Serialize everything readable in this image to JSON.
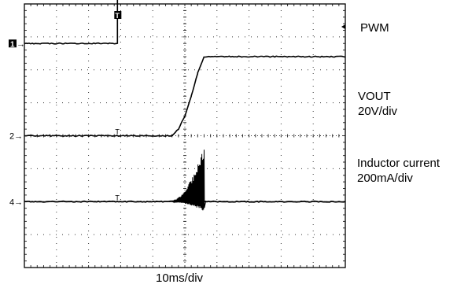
{
  "chart_data": {
    "type": "line",
    "title": "",
    "xlabel": "10ms/div",
    "ylabel": "",
    "grid": true,
    "time_per_div_ms": 10,
    "x_divisions": 10,
    "y_divisions": 8,
    "marker_labels": [
      "1→",
      "2→",
      "4→",
      "T"
    ],
    "annotations": [
      {
        "id": "pwm",
        "lines": [
          "PWM"
        ]
      },
      {
        "id": "vout",
        "lines": [
          "VOUT",
          "20V/div"
        ]
      },
      {
        "id": "ind",
        "lines": [
          "Inductor current",
          "200mA/div"
        ]
      }
    ],
    "series": [
      {
        "name": "PWM",
        "ground_div": 6.8,
        "trigger_ms": 29,
        "x_ms": [
          0,
          29,
          29,
          100
        ],
        "y_div": [
          0,
          0,
          6.6,
          6.6
        ]
      },
      {
        "name": "VOUT",
        "units_per_div": "20V/div",
        "ground_div": 4.0,
        "x_ms": [
          0,
          46,
          48,
          50,
          52,
          54,
          56,
          100
        ],
        "y_div": [
          0,
          0,
          0.2,
          0.6,
          1.2,
          1.9,
          2.4,
          2.4
        ]
      },
      {
        "name": "Inductor current",
        "units_per_div": "200mA/div",
        "ground_div": 2.0,
        "x_ms": [
          0,
          45,
          56,
          56.5,
          100
        ],
        "envelope_max_div": [
          0,
          0,
          1.7,
          0,
          0
        ],
        "envelope_min_div": [
          0,
          0,
          -0.3,
          0,
          0
        ]
      }
    ]
  }
}
